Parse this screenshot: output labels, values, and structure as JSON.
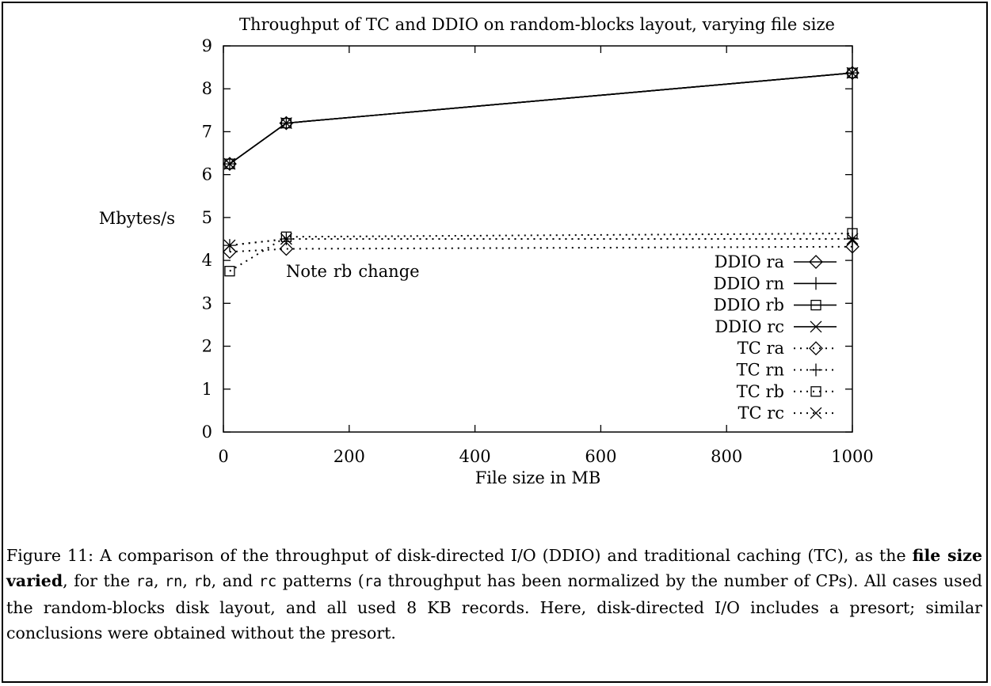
{
  "chart_data": {
    "type": "line",
    "title": "Throughput of TC and DDIO on random-blocks layout, varying file size",
    "xlabel": "File size in MB",
    "ylabel": "Mbytes/s",
    "xlim": [
      0,
      1000
    ],
    "ylim": [
      0,
      9
    ],
    "xticks": [
      "0",
      "200",
      "400",
      "600",
      "800",
      "1000"
    ],
    "yticks": [
      "0",
      "1",
      "2",
      "3",
      "4",
      "5",
      "6",
      "7",
      "8",
      "9"
    ],
    "grid": false,
    "legend_position": "right",
    "x": [
      10,
      100,
      1000
    ],
    "series": [
      {
        "name_prefix": "DDIO",
        "pattern": "ra",
        "marker": "diamond",
        "line": "solid",
        "values": [
          6.25,
          7.2,
          8.37
        ]
      },
      {
        "name_prefix": "DDIO",
        "pattern": "rn",
        "marker": "plus",
        "line": "solid",
        "values": [
          6.25,
          7.2,
          8.37
        ]
      },
      {
        "name_prefix": "DDIO",
        "pattern": "rb",
        "marker": "square",
        "line": "solid",
        "values": [
          6.25,
          7.2,
          8.37
        ]
      },
      {
        "name_prefix": "DDIO",
        "pattern": "rc",
        "marker": "cross",
        "line": "solid",
        "values": [
          6.25,
          7.2,
          8.37
        ]
      },
      {
        "name_prefix": "TC",
        "pattern": "ra",
        "marker": "diamond",
        "line": "dotted",
        "values": [
          4.2,
          4.27,
          4.32
        ]
      },
      {
        "name_prefix": "TC",
        "pattern": "rn",
        "marker": "plus",
        "line": "dotted",
        "values": [
          4.35,
          4.5,
          4.5
        ]
      },
      {
        "name_prefix": "TC",
        "pattern": "rb",
        "marker": "square",
        "line": "dotted",
        "values": [
          3.75,
          4.55,
          4.63
        ]
      },
      {
        "name_prefix": "TC",
        "pattern": "rc",
        "marker": "cross",
        "line": "dotted",
        "values": [
          4.35,
          4.5,
          4.5
        ]
      }
    ],
    "annotation": {
      "prefix": "Note",
      "code": "rb",
      "suffix": "change",
      "x": 100,
      "y": 3.75
    }
  },
  "caption": {
    "p1": "Figure 11: A comparison of the throughput of disk-directed I/O (DDIO) and traditional caching (TC), as the ",
    "bold": "file size varied",
    "p2": ", for the ",
    "c1": "ra",
    "p3": ", ",
    "c2": "rn",
    "p4": ", ",
    "c3": "rb",
    "p5": ", and ",
    "c4": "rc",
    "p6": " patterns (",
    "c5": "ra",
    "p7": " throughput has been normalized by the number of CPs). All cases used the random-blocks disk layout, and all used 8 KB records. Here, disk-directed I/O includes a presort; similar conclusions were obtained without the presort."
  }
}
